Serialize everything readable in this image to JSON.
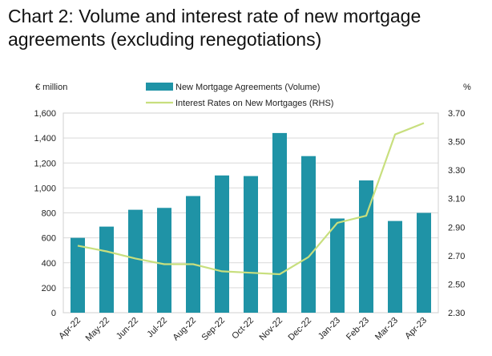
{
  "title": "Chart 2:  Volume and interest rate of new mortgage agreements (excluding renegotiations)",
  "chart_data": {
    "type": "bar",
    "categories": [
      "Apr-22",
      "May-22",
      "Jun-22",
      "Jul-22",
      "Aug-22",
      "Sep-22",
      "Oct-22",
      "Nov-22",
      "Dec-22",
      "Jan-23",
      "Feb-23",
      "Mar-23",
      "Apr-23"
    ],
    "left_axis_unit": "€ million",
    "right_axis_unit": "%",
    "ylim": [
      0,
      1600
    ],
    "yticks": [
      "0",
      "200",
      "400",
      "600",
      "800",
      "1,000",
      "1,200",
      "1,400",
      "1,600"
    ],
    "y2lim": [
      2.3,
      3.7
    ],
    "y2ticks": [
      "2.30",
      "2.50",
      "2.70",
      "2.90",
      "3.10",
      "3.30",
      "3.50",
      "3.70"
    ],
    "series": [
      {
        "name": "New Mortgage Agreements (Volume)",
        "type": "bar",
        "axis": "left",
        "color": "#1f93a6",
        "values": [
          600,
          690,
          825,
          840,
          935,
          1100,
          1095,
          1440,
          1255,
          755,
          1060,
          735,
          800
        ]
      },
      {
        "name": "Interest Rates on New Mortgages (RHS)",
        "type": "line",
        "axis": "right",
        "color": "#c8df7e",
        "values": [
          2.77,
          2.73,
          2.68,
          2.64,
          2.64,
          2.59,
          2.58,
          2.57,
          2.69,
          2.93,
          2.98,
          3.55,
          3.63
        ]
      }
    ],
    "grid": "horizontal",
    "legend": "top-center"
  }
}
